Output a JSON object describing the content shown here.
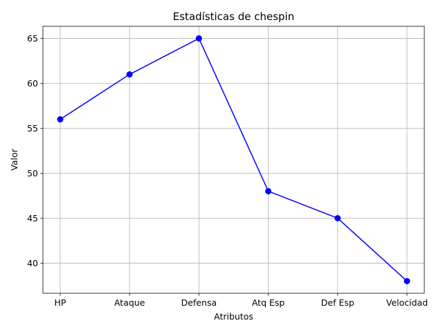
{
  "chart_data": {
    "type": "line",
    "title": "Estadísticas de chespin",
    "xlabel": "Atributos",
    "ylabel": "Valor",
    "categories": [
      "HP",
      "Ataque",
      "Defensa",
      "Atq Esp",
      "Def Esp",
      "Velocidad"
    ],
    "series": [
      {
        "values": [
          56,
          61,
          65,
          48,
          45,
          38
        ],
        "color": "#0000ff",
        "marker": "circle"
      }
    ],
    "ylim": [
      36.65,
      66.35
    ],
    "yticks": [
      40,
      45,
      50,
      55,
      60,
      65
    ],
    "grid": true
  }
}
